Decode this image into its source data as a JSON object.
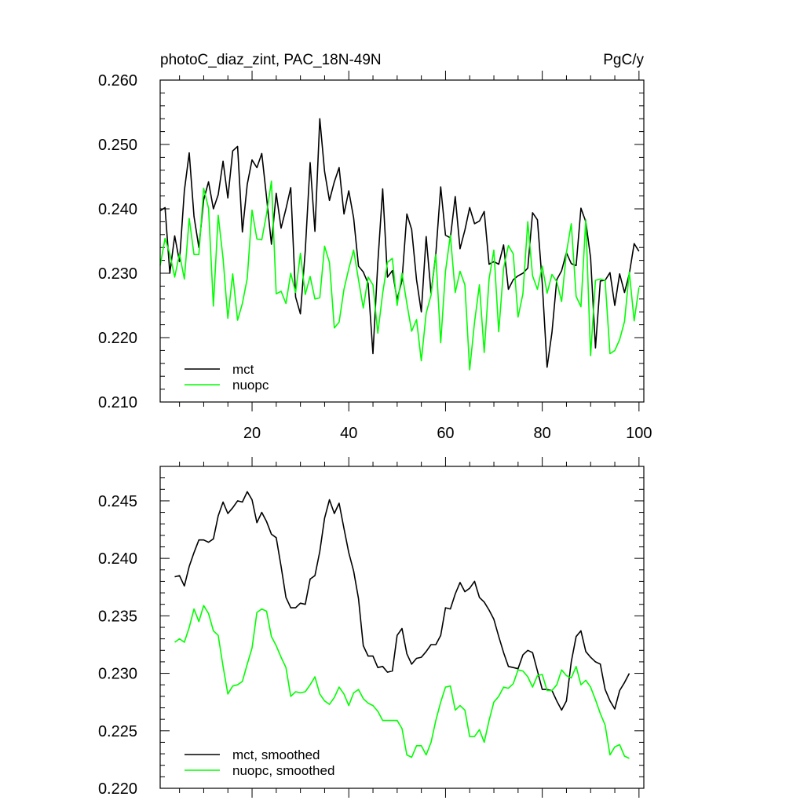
{
  "chart_data": [
    {
      "type": "line",
      "title": "photoC_diaz_zint, PAC_18N-49N",
      "units": "PgC/y",
      "xlabel": "",
      "ylabel": "",
      "xlim": [
        1,
        101
      ],
      "ylim": [
        0.21,
        0.26
      ],
      "xticks": [
        20,
        40,
        60,
        80,
        100
      ],
      "xtick_labels": [
        "20",
        "40",
        "60",
        "80",
        "100"
      ],
      "yticks": [
        0.21,
        0.22,
        0.23,
        0.24,
        0.25,
        0.26
      ],
      "ytick_labels": [
        "0.210",
        "0.220",
        "0.230",
        "0.240",
        "0.250",
        "0.260"
      ],
      "legend_position": "bottom-left",
      "series": [
        {
          "name": "mct",
          "color": "#000000",
          "values": [
            0.2397,
            0.2402,
            0.23,
            0.2358,
            0.2318,
            0.2428,
            0.2487,
            0.2388,
            0.234,
            0.2414,
            0.2442,
            0.24,
            0.2422,
            0.2474,
            0.2417,
            0.249,
            0.2497,
            0.2364,
            0.2438,
            0.2476,
            0.2464,
            0.2486,
            0.2418,
            0.2345,
            0.2424,
            0.237,
            0.24,
            0.2433,
            0.2263,
            0.2237,
            0.2335,
            0.2472,
            0.2365,
            0.254,
            0.2458,
            0.2413,
            0.2442,
            0.2464,
            0.2392,
            0.2428,
            0.2386,
            0.2311,
            0.2302,
            0.2284,
            0.2175,
            0.2316,
            0.2431,
            0.2294,
            0.2304,
            0.2259,
            0.2289,
            0.2392,
            0.2368,
            0.229,
            0.224,
            0.2357,
            0.2269,
            0.233,
            0.2434,
            0.2359,
            0.2355,
            0.2419,
            0.2338,
            0.2367,
            0.2402,
            0.2377,
            0.2381,
            0.2396,
            0.2314,
            0.2318,
            0.2314,
            0.2344,
            0.2275,
            0.229,
            0.2296,
            0.23,
            0.2308,
            0.2394,
            0.2383,
            0.2285,
            0.2154,
            0.2208,
            0.229,
            0.2304,
            0.2332,
            0.2315,
            0.2312,
            0.2401,
            0.238,
            0.2324,
            0.2184,
            0.2288,
            0.2289,
            0.2301,
            0.225,
            0.2299,
            0.227,
            0.2299,
            0.2346,
            0.2334
          ]
        },
        {
          "name": "nuopc",
          "color": "#00ff00",
          "values": [
            0.2312,
            0.2354,
            0.233,
            0.2294,
            0.233,
            0.2291,
            0.2385,
            0.2329,
            0.2329,
            0.2432,
            0.2401,
            0.2249,
            0.239,
            0.2323,
            0.223,
            0.2299,
            0.2227,
            0.2253,
            0.2292,
            0.2398,
            0.2353,
            0.2352,
            0.2392,
            0.2443,
            0.2268,
            0.2272,
            0.2253,
            0.23,
            0.227,
            0.2331,
            0.2267,
            0.2295,
            0.226,
            0.2262,
            0.2342,
            0.2317,
            0.2215,
            0.2224,
            0.2275,
            0.2307,
            0.2336,
            0.229,
            0.2246,
            0.2294,
            0.2282,
            0.2207,
            0.2269,
            0.2317,
            0.2323,
            0.225,
            0.23,
            0.2253,
            0.221,
            0.2228,
            0.2164,
            0.2238,
            0.2266,
            0.2329,
            0.2192,
            0.2303,
            0.2359,
            0.227,
            0.2303,
            0.2282,
            0.215,
            0.2224,
            0.2282,
            0.2177,
            0.2291,
            0.2336,
            0.2209,
            0.2308,
            0.2343,
            0.233,
            0.2232,
            0.2268,
            0.238,
            0.2296,
            0.2275,
            0.2311,
            0.2269,
            0.2298,
            0.2287,
            0.2256,
            0.2332,
            0.2377,
            0.2264,
            0.2248,
            0.2383,
            0.2172,
            0.2289,
            0.2291,
            0.2289,
            0.2175,
            0.218,
            0.2197,
            0.2225,
            0.2302,
            0.2226,
            0.2278
          ]
        }
      ]
    },
    {
      "type": "line",
      "title": "",
      "xlabel": "",
      "ylabel": "",
      "xlim": [
        1,
        101
      ],
      "ylim": [
        0.22,
        0.248
      ],
      "xticks": [
        20,
        40,
        60,
        80,
        100
      ],
      "xtick_labels": [],
      "yticks": [
        0.22,
        0.225,
        0.23,
        0.235,
        0.24,
        0.245
      ],
      "ytick_labels": [
        "0.220",
        "0.225",
        "0.230",
        "0.235",
        "0.240",
        "0.245"
      ],
      "legend_position": "bottom-left",
      "series": [
        {
          "name": "mct, smoothed",
          "color": "#000000",
          "x_start": 4,
          "values": [
            0.2384,
            0.2385,
            0.2376,
            0.2393,
            0.2405,
            0.2416,
            0.2416,
            0.2414,
            0.2417,
            0.2437,
            0.2449,
            0.2439,
            0.2444,
            0.245,
            0.2449,
            0.2458,
            0.2451,
            0.2431,
            0.244,
            0.2432,
            0.2421,
            0.2418,
            0.2393,
            0.2366,
            0.2357,
            0.2357,
            0.2361,
            0.236,
            0.2382,
            0.2385,
            0.2406,
            0.2435,
            0.2451,
            0.2439,
            0.2448,
            0.2426,
            0.2405,
            0.2389,
            0.2365,
            0.2324,
            0.2315,
            0.2315,
            0.2305,
            0.2306,
            0.2301,
            0.2302,
            0.2333,
            0.2339,
            0.2317,
            0.2308,
            0.2313,
            0.2314,
            0.2319,
            0.2325,
            0.2325,
            0.2333,
            0.2357,
            0.2356,
            0.2369,
            0.2379,
            0.2371,
            0.2374,
            0.238,
            0.2366,
            0.2362,
            0.2355,
            0.2347,
            0.2332,
            0.2318,
            0.2306,
            0.2305,
            0.2304,
            0.2316,
            0.232,
            0.2318,
            0.2302,
            0.2286,
            0.2286,
            0.2285,
            0.2276,
            0.2268,
            0.2276,
            0.231,
            0.2332,
            0.2337,
            0.2319,
            0.2314,
            0.231,
            0.2308,
            0.2286,
            0.2276,
            0.2269,
            0.2285,
            0.2292,
            0.23
          ]
        },
        {
          "name": "nuopc, smoothed",
          "color": "#00ff00",
          "x_start": 4,
          "values": [
            0.2327,
            0.233,
            0.2327,
            0.234,
            0.2356,
            0.2345,
            0.2359,
            0.2352,
            0.2337,
            0.2333,
            0.2306,
            0.2282,
            0.2289,
            0.229,
            0.2293,
            0.2308,
            0.2322,
            0.2353,
            0.2356,
            0.2354,
            0.2332,
            0.2324,
            0.2314,
            0.2305,
            0.228,
            0.2284,
            0.2283,
            0.2284,
            0.229,
            0.2297,
            0.2282,
            0.2276,
            0.2273,
            0.2279,
            0.2288,
            0.2282,
            0.2272,
            0.2283,
            0.2286,
            0.2278,
            0.2274,
            0.2272,
            0.2267,
            0.2259,
            0.2259,
            0.2259,
            0.2259,
            0.2252,
            0.2229,
            0.2227,
            0.2237,
            0.2237,
            0.2229,
            0.224,
            0.2259,
            0.2275,
            0.2288,
            0.2289,
            0.2268,
            0.2272,
            0.2268,
            0.2245,
            0.2245,
            0.2251,
            0.224,
            0.2259,
            0.2275,
            0.228,
            0.2288,
            0.2287,
            0.2291,
            0.2303,
            0.2302,
            0.2297,
            0.2288,
            0.2298,
            0.2299,
            0.2285,
            0.2285,
            0.229,
            0.2303,
            0.2298,
            0.2296,
            0.2306,
            0.229,
            0.2294,
            0.2288,
            0.2277,
            0.2265,
            0.2255,
            0.2229,
            0.2236,
            0.2238,
            0.2228,
            0.2226
          ]
        }
      ]
    }
  ]
}
